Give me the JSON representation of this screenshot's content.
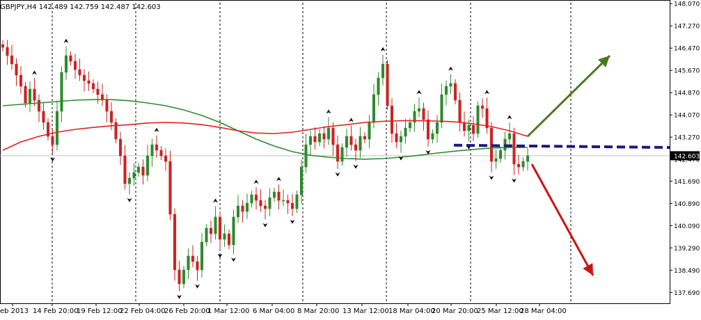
{
  "chart_data": {
    "type": "candlestick",
    "symbol_header": "GBPJPY,H4  142.489 142.759 142.487 142.603",
    "current_price": 142.603,
    "current_price_label": "142.603",
    "ylim": [
      137.3,
      148.1
    ],
    "y_ticks": [
      "148.070",
      "147.270",
      "146.470",
      "145.670",
      "144.870",
      "144.070",
      "143.270",
      "142.470",
      "141.690",
      "140.890",
      "140.090",
      "139.290",
      "138.490",
      "137.690"
    ],
    "x_ticks": [
      "eb 2013",
      "14 Feb 20:00",
      "19 Feb 12:00",
      "22 Feb 04:00",
      "26 Feb 20:00",
      "1 Mar 12:00",
      "6 Mar 04:00",
      "8 Mar 20:00",
      "13 Mar 12:00",
      "18 Mar 04:00",
      "20 Mar 20:00",
      "25 Mar 12:00",
      "28 Mar 04:00"
    ],
    "closes": [
      146.5,
      146.2,
      145.9,
      145.5,
      145.1,
      144.5,
      145.0,
      144.6,
      144.2,
      143.8,
      143.3,
      143.0,
      144.2,
      145.6,
      146.2,
      146.0,
      145.7,
      145.5,
      145.3,
      145.2,
      145.0,
      144.8,
      144.6,
      144.2,
      143.8,
      143.2,
      142.6,
      141.6,
      141.8,
      142.0,
      142.2,
      141.9,
      142.6,
      143.0,
      142.8,
      142.6,
      142.4,
      140.5,
      138.5,
      138.0,
      138.5,
      139.0,
      138.8,
      138.5,
      139.5,
      140.0,
      139.8,
      140.4,
      139.6,
      139.8,
      139.4,
      140.4,
      140.8,
      140.6,
      140.9,
      141.2,
      141.0,
      140.8,
      140.7,
      141.1,
      141.3,
      141.0,
      141.0,
      140.9,
      140.7,
      141.2,
      142.2,
      143.0,
      143.3,
      143.1,
      143.4,
      143.2,
      143.6,
      143.0,
      142.4,
      142.9,
      143.3,
      143.0,
      142.8,
      143.3,
      143.2,
      143.8,
      144.8,
      145.4,
      145.9,
      144.4,
      143.4,
      143.1,
      143.3,
      143.6,
      143.8,
      144.2,
      144.3,
      143.9,
      143.2,
      143.4,
      143.8,
      144.8,
      145.1,
      145.2,
      144.6,
      143.8,
      143.5,
      143.7,
      143.4,
      144.4,
      144.3,
      143.6,
      142.4,
      142.5,
      142.8,
      143.2,
      143.4,
      142.3,
      142.2,
      142.4,
      142.6
    ],
    "sma_fast": [
      144.4,
      144.45,
      144.5,
      144.55,
      144.6,
      144.62,
      144.62,
      144.58,
      144.5,
      144.4,
      144.25,
      144.05,
      143.8,
      143.5,
      143.2,
      142.95,
      142.75,
      142.62,
      142.55,
      142.5,
      142.48,
      142.5,
      142.55,
      142.62,
      142.7,
      142.77,
      142.83,
      142.88,
      142.9,
      142.9
    ],
    "sma_slow": [
      142.8,
      143.1,
      143.3,
      143.45,
      143.55,
      143.62,
      143.68,
      143.72,
      143.78,
      143.8,
      143.78,
      143.72,
      143.62,
      143.5,
      143.42,
      143.4,
      143.45,
      143.55,
      143.65,
      143.72,
      143.8,
      143.84,
      143.86,
      143.86,
      143.85,
      143.82,
      143.75,
      143.65,
      143.5,
      143.3
    ],
    "support_line_label": "",
    "scenario_up": "bullish breakout",
    "scenario_down": "bearish breakdown",
    "colors": {
      "candle_up": "#2d8a2d",
      "candle_down": "#cc2222",
      "sma_fast": "#2d8a2d",
      "sma_slow": "#e02020",
      "support": "#1a1a80",
      "arrow_up": "#4a7a20",
      "arrow_down": "#cc1111",
      "price_tag_bg": "#000000",
      "price_tag_fg": "#ffffff"
    },
    "fractal_icon": "fractal-arrow-icon"
  }
}
